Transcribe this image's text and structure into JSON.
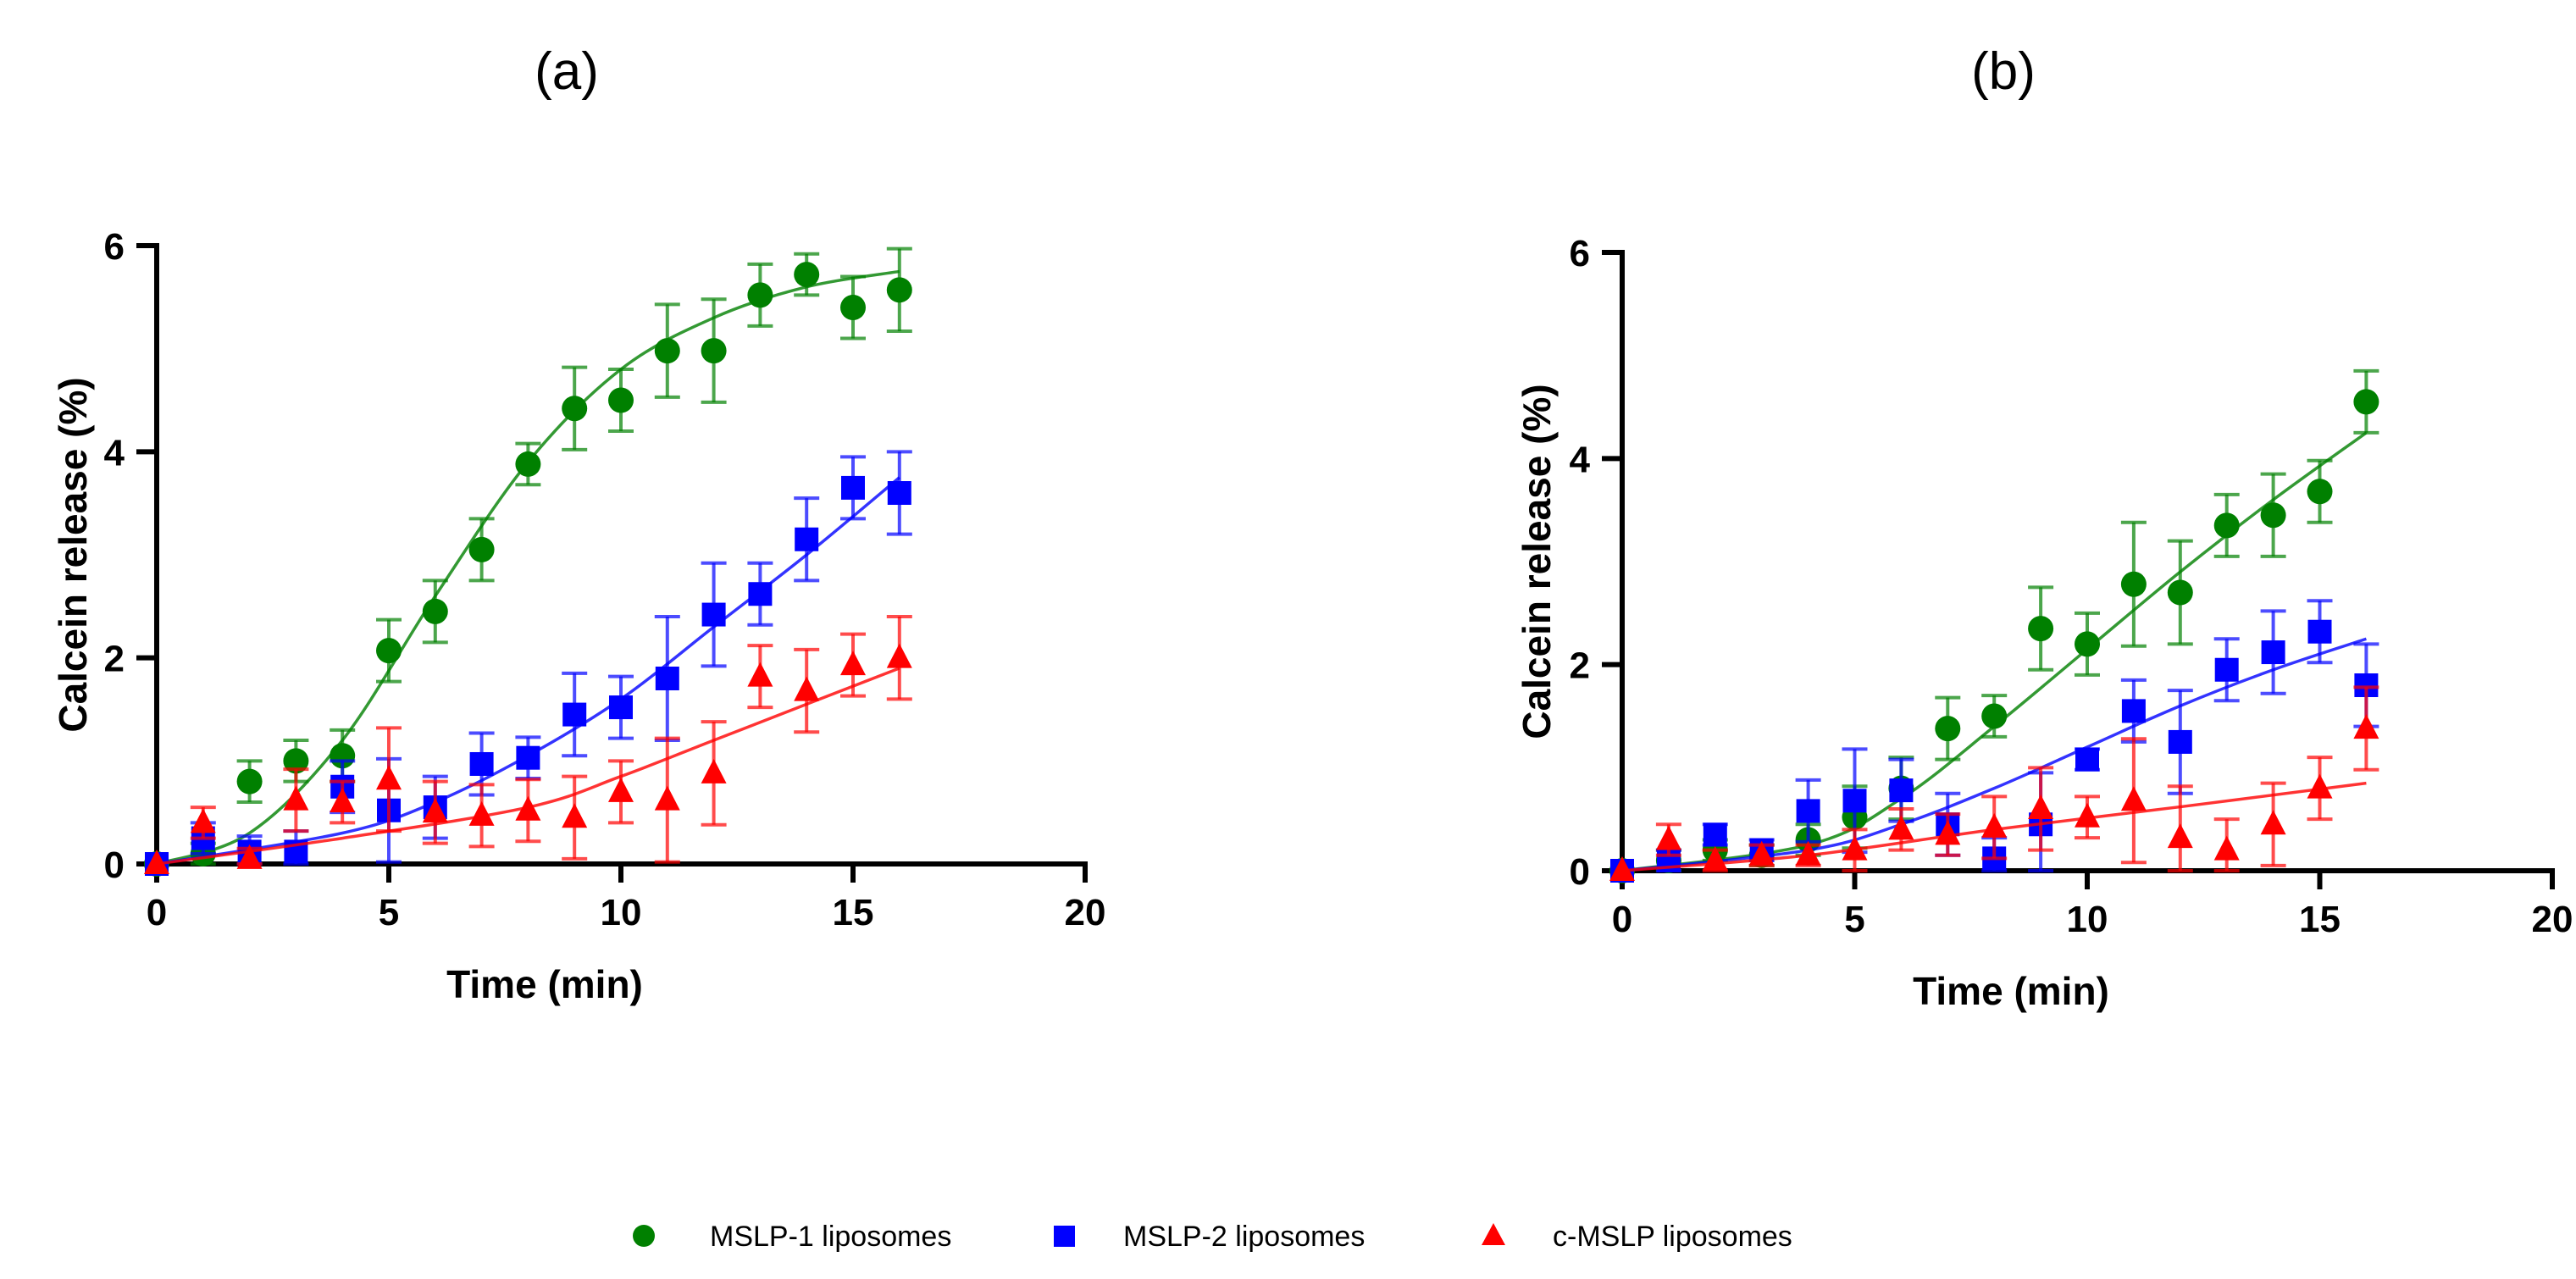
{
  "chart_data": [
    {
      "type": "scatter",
      "title": "(a)",
      "xlabel": "Time (min)",
      "ylabel": "Calcein release (%)",
      "xlim": [
        0,
        20
      ],
      "ylim": [
        0,
        6
      ],
      "xticks": [
        "0",
        "5",
        "10",
        "15",
        "20"
      ],
      "yticks": [
        "0",
        "2",
        "4",
        "6"
      ],
      "grid": false,
      "x": [
        0,
        1,
        2,
        3,
        4,
        5,
        6,
        7,
        8,
        9,
        10,
        11,
        12,
        13,
        14,
        15,
        16
      ],
      "series": [
        {
          "name": "MSLP-1 liposomes",
          "color": "#008000",
          "marker": "circle",
          "values": [
            0,
            0.1,
            0.8,
            1.0,
            1.05,
            2.07,
            2.45,
            3.05,
            3.88,
            4.42,
            4.5,
            4.98,
            4.98,
            5.52,
            5.72,
            5.4,
            5.57
          ],
          "errors": [
            0,
            0.1,
            0.2,
            0.2,
            0.25,
            0.3,
            0.3,
            0.3,
            0.2,
            0.4,
            0.3,
            0.45,
            0.5,
            0.3,
            0.2,
            0.3,
            0.4
          ],
          "fit": [
            [
              0,
              0
            ],
            [
              2,
              0.3
            ],
            [
              4,
              1.2
            ],
            [
              6,
              2.6
            ],
            [
              8,
              3.9
            ],
            [
              10,
              4.8
            ],
            [
              12,
              5.3
            ],
            [
              14,
              5.6
            ],
            [
              16,
              5.75
            ]
          ]
        },
        {
          "name": "MSLP-2 liposomes",
          "color": "#0000ff",
          "marker": "square",
          "values": [
            0,
            0.25,
            0.12,
            0.12,
            0.75,
            0.52,
            0.55,
            0.97,
            1.03,
            1.45,
            1.52,
            1.8,
            2.42,
            2.62,
            3.15,
            3.65,
            3.6
          ],
          "errors": [
            0,
            0.15,
            0.15,
            0.2,
            0.25,
            0.5,
            0.3,
            0.3,
            0.2,
            0.4,
            0.3,
            0.6,
            0.5,
            0.3,
            0.4,
            0.3,
            0.4
          ],
          "fit": [
            [
              0,
              0
            ],
            [
              4,
              0.3
            ],
            [
              6,
              0.6
            ],
            [
              8,
              1.05
            ],
            [
              10,
              1.6
            ],
            [
              12,
              2.3
            ],
            [
              14,
              3.0
            ],
            [
              16,
              3.75
            ]
          ]
        },
        {
          "name": "c-MSLP liposomes",
          "color": "#ff0000",
          "marker": "triangle",
          "values": [
            0,
            0.4,
            0.05,
            0.62,
            0.6,
            0.82,
            0.5,
            0.47,
            0.52,
            0.45,
            0.7,
            0.62,
            0.88,
            1.82,
            1.68,
            1.93,
            2.0
          ],
          "errors": [
            0,
            0.15,
            0.1,
            0.3,
            0.2,
            0.5,
            0.3,
            0.3,
            0.3,
            0.4,
            0.3,
            0.6,
            0.5,
            0.3,
            0.4,
            0.3,
            0.4
          ],
          "fit": [
            [
              0,
              0
            ],
            [
              4,
              0.25
            ],
            [
              8,
              0.55
            ],
            [
              10,
              0.85
            ],
            [
              12,
              1.2
            ],
            [
              14,
              1.55
            ],
            [
              16,
              1.9
            ]
          ]
        }
      ]
    },
    {
      "type": "scatter",
      "title": "(b)",
      "xlabel": "Time (min)",
      "ylabel": "Calcein release (%)",
      "xlim": [
        0,
        20
      ],
      "ylim": [
        0,
        6
      ],
      "xticks": [
        "0",
        "5",
        "10",
        "15",
        "20"
      ],
      "yticks": [
        "0",
        "2",
        "4",
        "6"
      ],
      "grid": false,
      "x": [
        0,
        1,
        2,
        3,
        4,
        5,
        6,
        7,
        8,
        9,
        10,
        11,
        12,
        13,
        14,
        15,
        16
      ],
      "series": [
        {
          "name": "MSLP-1 liposomes",
          "color": "#008000",
          "marker": "circle",
          "values": [
            0,
            0.1,
            0.2,
            0.15,
            0.3,
            0.52,
            0.8,
            1.38,
            1.5,
            2.35,
            2.2,
            2.78,
            2.7,
            3.35,
            3.45,
            3.68,
            4.55
          ],
          "errors": [
            0,
            0.1,
            0.1,
            0.1,
            0.15,
            0.3,
            0.3,
            0.3,
            0.2,
            0.4,
            0.3,
            0.6,
            0.5,
            0.3,
            0.4,
            0.3,
            0.3
          ],
          "fit": [
            [
              0,
              0
            ],
            [
              4,
              0.25
            ],
            [
              6,
              0.7
            ],
            [
              8,
              1.4
            ],
            [
              10,
              2.15
            ],
            [
              12,
              2.9
            ],
            [
              14,
              3.6
            ],
            [
              16,
              4.25
            ]
          ]
        },
        {
          "name": "MSLP-2 liposomes",
          "color": "#0000ff",
          "marker": "square",
          "values": [
            0,
            0.1,
            0.35,
            0.2,
            0.58,
            0.68,
            0.78,
            0.45,
            0.12,
            0.45,
            1.08,
            1.55,
            1.25,
            1.95,
            2.12,
            2.32,
            1.8
          ],
          "errors": [
            0,
            0.1,
            0.1,
            0.1,
            0.3,
            0.5,
            0.3,
            0.3,
            0.2,
            0.5,
            0.1,
            0.3,
            0.5,
            0.3,
            0.4,
            0.3,
            0.4
          ],
          "fit": [
            [
              0,
              0
            ],
            [
              4,
              0.2
            ],
            [
              6,
              0.45
            ],
            [
              8,
              0.8
            ],
            [
              10,
              1.2
            ],
            [
              12,
              1.6
            ],
            [
              14,
              1.95
            ],
            [
              16,
              2.25
            ]
          ]
        },
        {
          "name": "c-MSLP liposomes",
          "color": "#ff0000",
          "marker": "triangle",
          "values": [
            0,
            0.3,
            0.1,
            0.15,
            0.15,
            0.2,
            0.4,
            0.35,
            0.42,
            0.6,
            0.52,
            0.68,
            0.32,
            0.2,
            0.45,
            0.8,
            1.38
          ],
          "errors": [
            0,
            0.15,
            0.1,
            0.1,
            0.1,
            0.2,
            0.2,
            0.2,
            0.3,
            0.4,
            0.2,
            0.6,
            0.5,
            0.3,
            0.4,
            0.3,
            0.4
          ],
          "fit": [
            [
              0,
              0
            ],
            [
              4,
              0.15
            ],
            [
              8,
              0.4
            ],
            [
              12,
              0.62
            ],
            [
              16,
              0.85
            ]
          ]
        }
      ]
    }
  ],
  "legend": {
    "placement": "bottom",
    "items": [
      "MSLP-1 liposomes",
      "MSLP-2 liposomes",
      "c-MSLP liposomes"
    ]
  }
}
